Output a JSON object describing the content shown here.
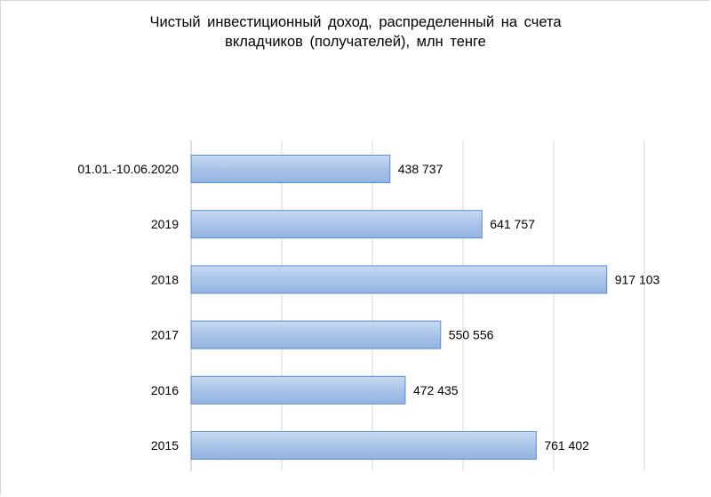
{
  "chart_data": {
    "type": "bar",
    "orientation": "horizontal",
    "title_lines": [
      "Чистый инвестиционный доход, распределенный на счета",
      "вкладчиков (получателей), млн тенге"
    ],
    "categories": [
      "01.01.-10.06.2020",
      "2019",
      "2018",
      "2017",
      "2016",
      "2015"
    ],
    "values": [
      438737,
      641757,
      917103,
      550556,
      472435,
      761402
    ],
    "data_labels": [
      "438 737",
      "641 757",
      "917 103",
      "550 556",
      "472 435",
      "761 402"
    ],
    "xlim": [
      0,
      1000000
    ],
    "grid": true,
    "legend": "none",
    "bar_color": "#a7c3e8",
    "bar_edge_color": "#5b8ccc"
  }
}
